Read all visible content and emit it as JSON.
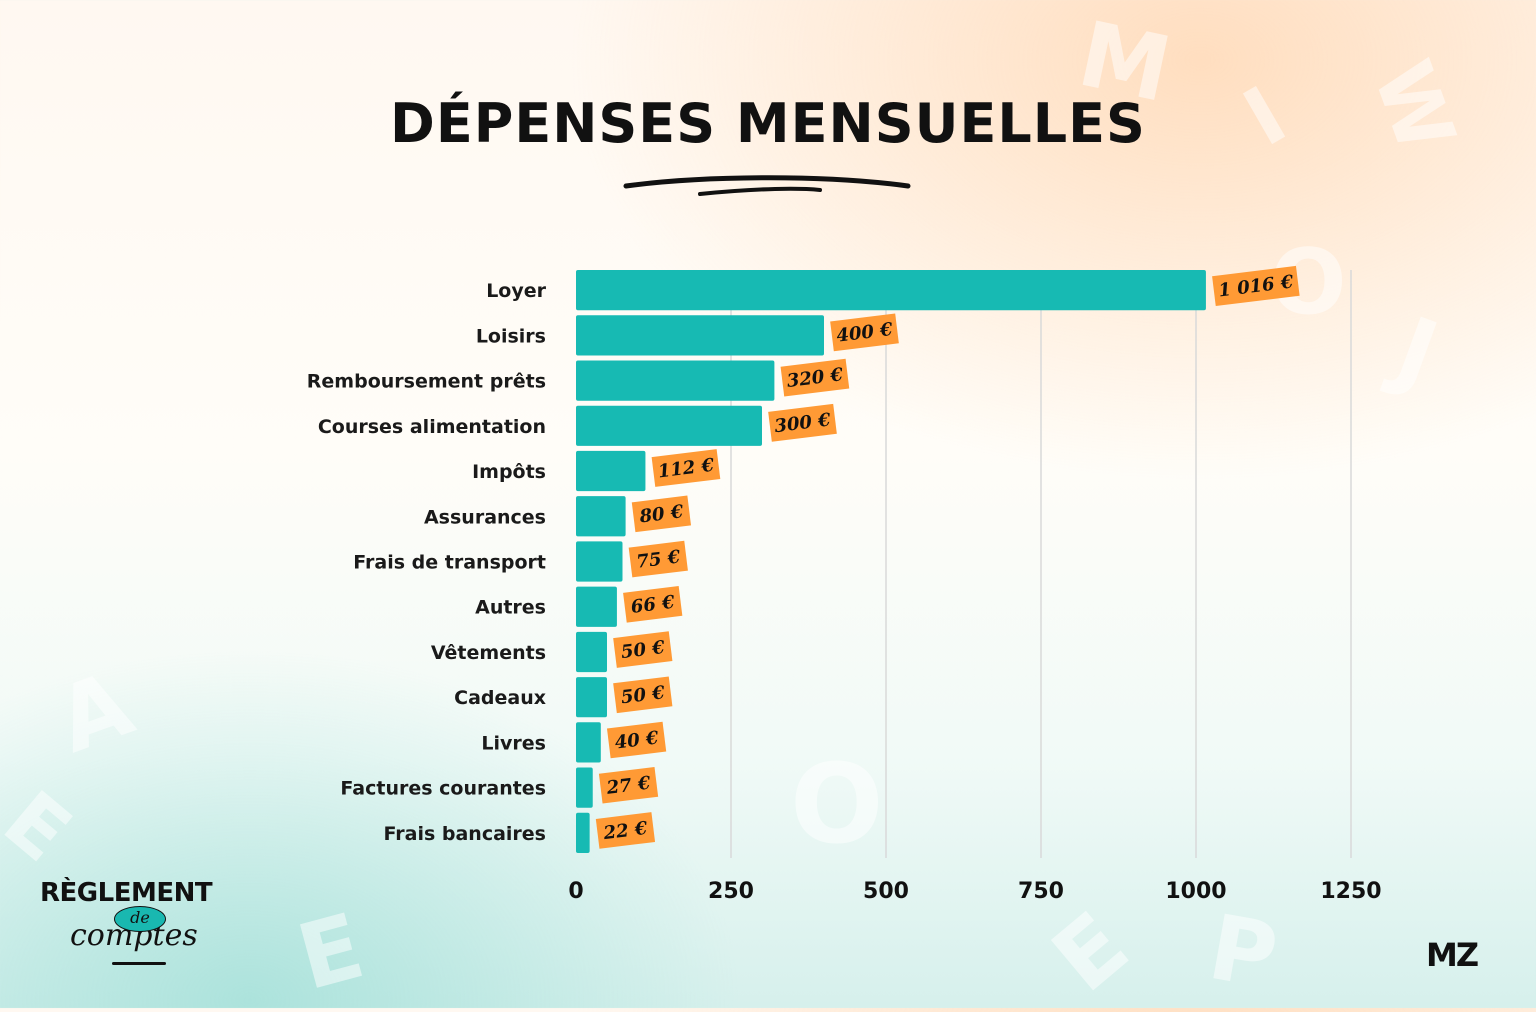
{
  "title": "DÉPENSES MENSUELLES",
  "colors": {
    "bar": "#17bab3",
    "label_bg": "#ff9a35",
    "grid": "#d9d9d9",
    "text": "#111111"
  },
  "chart_data": {
    "type": "bar",
    "orientation": "horizontal",
    "title": "DÉPENSES MENSUELLES",
    "categories": [
      "Loyer",
      "Loisirs",
      "Remboursement prêts",
      "Courses alimentation",
      "Impôts",
      "Assurances",
      "Frais de transport",
      "Autres",
      "Vêtements",
      "Cadeaux",
      "Livres",
      "Factures courantes",
      "Frais bancaires"
    ],
    "values": [
      1016,
      400,
      320,
      300,
      112,
      80,
      75,
      66,
      50,
      50,
      40,
      27,
      22
    ],
    "value_labels": [
      "1 016 €",
      "400 €",
      "320 €",
      "300 €",
      "112 €",
      "80 €",
      "75 €",
      "66 €",
      "50 €",
      "50 €",
      "40 €",
      "27 €",
      "22 €"
    ],
    "xticks": [
      "0",
      "250",
      "500",
      "750",
      "1000",
      "1250"
    ],
    "xlim": [
      0,
      1250
    ],
    "grid": true,
    "xlabel": "",
    "ylabel": ""
  },
  "logos": {
    "left_top": "RÈGLEMENT",
    "left_mid": "de",
    "left_bottom": "comptes",
    "right": "MZ"
  }
}
